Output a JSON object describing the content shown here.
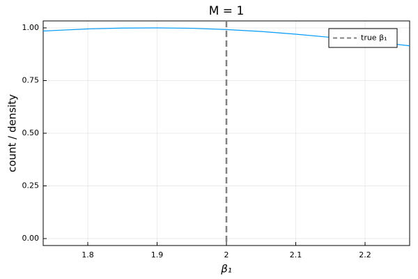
{
  "chart_data": {
    "type": "line",
    "title": "M = 1",
    "xlabel": "β₁",
    "ylabel": "count / density",
    "series": [
      {
        "color": "#009af9",
        "x": [
          1.7357,
          1.76,
          1.8,
          1.85,
          1.9,
          1.95,
          2.0,
          2.05,
          2.1,
          2.15,
          2.2,
          2.2643
        ],
        "values": [
          0.985,
          0.989,
          0.995,
          0.999,
          1.0,
          0.998,
          0.992,
          0.983,
          0.97,
          0.955,
          0.938,
          0.915
        ]
      }
    ],
    "vlines": [
      {
        "name": "true β₁",
        "x": 2.0,
        "color": "#808080"
      }
    ],
    "xlim": [
      1.7357,
      2.2643
    ],
    "xticks": [
      1.8,
      1.9,
      2.0,
      2.1,
      2.2
    ],
    "ylim": [
      -0.033,
      1.033
    ],
    "yticks": [
      {
        "value": 0,
        "label": "0.00"
      },
      {
        "value": 0.25,
        "label": "0.25"
      },
      {
        "value": 0.5,
        "label": "0.50"
      },
      {
        "value": 0.75,
        "label": "0.75"
      },
      {
        "value": 1,
        "label": "1.00"
      }
    ],
    "grid": true,
    "legend": "top-right"
  }
}
